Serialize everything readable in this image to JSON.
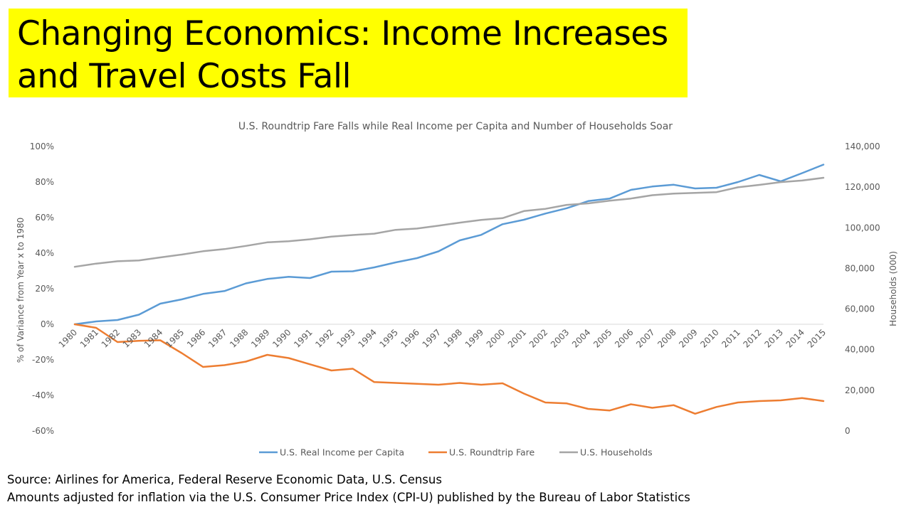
{
  "slide": {
    "title_line1": "Changing Economics: Income Increases",
    "title_line2": "and Travel Costs Fall",
    "source_line1": "Source: Airlines for America, Federal Reserve  Economic Data, U.S. Census",
    "source_line2": "Amounts adjusted for inflation via the U.S. Consumer Price Index (CPI-U) published by the Bureau of Labor Statistics"
  },
  "chart_data": {
    "type": "line",
    "title": "U.S. Roundtrip Fare Falls while Real Income per Capita and Number of Households Soar",
    "ylabel": "% of Variance from Year x to 1980",
    "y2label": "Households (000)",
    "ylim": [
      -0.6,
      1.0
    ],
    "y2lim": [
      0,
      140000
    ],
    "yticks": [
      "100%",
      "80%",
      "60%",
      "40%",
      "20%",
      "0%",
      "-20%",
      "-40%",
      "-60%"
    ],
    "y2ticks": [
      "140,000",
      "120,000",
      "100,000",
      "80,000",
      "60,000",
      "40,000",
      "20,000",
      "0"
    ],
    "categories": [
      "1980",
      "1981",
      "1982",
      "1983",
      "1984",
      "1985",
      "1986",
      "1987",
      "1988",
      "1989",
      "1990",
      "1991",
      "1992",
      "1993",
      "1994",
      "1995",
      "1996",
      "1997",
      "1998",
      "1999",
      "2000",
      "2001",
      "2002",
      "2003",
      "2004",
      "2005",
      "2006",
      "2007",
      "2008",
      "2009",
      "2010",
      "2011",
      "2012",
      "2013",
      "2014",
      "2015"
    ],
    "series": [
      {
        "name": "U.S. Real Income per Capita",
        "axis": "left",
        "color": "#5b9bd5",
        "values": [
          0.0,
          0.016,
          0.024,
          0.054,
          0.116,
          0.14,
          0.171,
          0.187,
          0.23,
          0.255,
          0.267,
          0.26,
          0.296,
          0.298,
          0.32,
          0.348,
          0.372,
          0.41,
          0.472,
          0.503,
          0.563,
          0.588,
          0.623,
          0.653,
          0.693,
          0.707,
          0.756,
          0.775,
          0.785,
          0.764,
          0.768,
          0.8,
          0.84,
          0.804,
          0.85,
          0.898
        ]
      },
      {
        "name": "U.S. Roundtrip Fare",
        "axis": "left",
        "color": "#ed7d31",
        "values": [
          0.0,
          -0.02,
          -0.1,
          -0.093,
          -0.09,
          -0.162,
          -0.24,
          -0.23,
          -0.21,
          -0.172,
          -0.19,
          -0.225,
          -0.26,
          -0.25,
          -0.325,
          -0.33,
          -0.335,
          -0.34,
          -0.33,
          -0.34,
          -0.332,
          -0.39,
          -0.44,
          -0.445,
          -0.476,
          -0.485,
          -0.45,
          -0.47,
          -0.455,
          -0.503,
          -0.465,
          -0.44,
          -0.432,
          -0.428,
          -0.415,
          -0.432
        ]
      },
      {
        "name": "U.S. Households",
        "axis": "right",
        "color": "#a5a5a5",
        "values": [
          80776,
          82368,
          83527,
          83918,
          85407,
          86789,
          88458,
          89479,
          91066,
          92830,
          93347,
          94312,
          95669,
          96426,
          97107,
          98990,
          99627,
          101018,
          102528,
          103874,
          104705,
          108209,
          109297,
          111278,
          112000,
          113343,
          114384,
          116011,
          116783,
          117181,
          117538,
          119927,
          121084,
          122459,
          123229,
          124587
        ]
      }
    ],
    "legend": [
      "U.S. Real Income per Capita",
      "U.S. Roundtrip Fare",
      "U.S. Households"
    ],
    "legend_position": "bottom",
    "grid": false
  }
}
